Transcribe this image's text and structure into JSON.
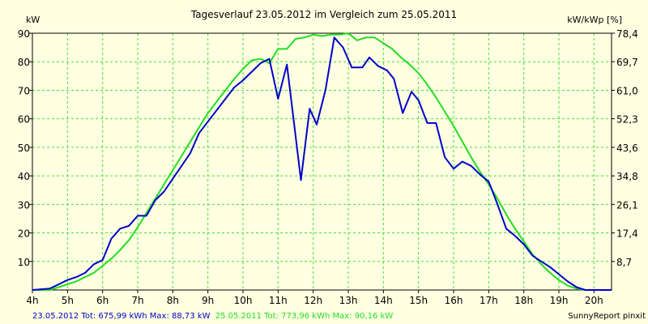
{
  "chart_data": {
    "type": "line",
    "title": "Tagesverlauf 23.05.2012 im Vergleich zum 25.05.2011",
    "ylabel_left": "kW",
    "ylabel_right": "kW/kWp [%]",
    "xlim": [
      4,
      20.5
    ],
    "ylim": [
      0,
      90
    ],
    "grid": true,
    "x_ticks": [
      {
        "value": 4,
        "label": "4h"
      },
      {
        "value": 5,
        "label": "5h"
      },
      {
        "value": 6,
        "label": "6h"
      },
      {
        "value": 7,
        "label": "7h"
      },
      {
        "value": 8,
        "label": "8h"
      },
      {
        "value": 9,
        "label": "9h"
      },
      {
        "value": 10,
        "label": "10h"
      },
      {
        "value": 11,
        "label": "11h"
      },
      {
        "value": 12,
        "label": "12h"
      },
      {
        "value": 13,
        "label": "13h"
      },
      {
        "value": 14,
        "label": "14h"
      },
      {
        "value": 15,
        "label": "15h"
      },
      {
        "value": 16,
        "label": "16h"
      },
      {
        "value": 17,
        "label": "17h"
      },
      {
        "value": 18,
        "label": "18h"
      },
      {
        "value": 19,
        "label": "19h"
      },
      {
        "value": 20,
        "label": "20h"
      }
    ],
    "y_ticks_left": [
      {
        "value": 10,
        "label": "10"
      },
      {
        "value": 20,
        "label": "20"
      },
      {
        "value": 30,
        "label": "30"
      },
      {
        "value": 40,
        "label": "40"
      },
      {
        "value": 50,
        "label": "50"
      },
      {
        "value": 60,
        "label": "60"
      },
      {
        "value": 70,
        "label": "70"
      },
      {
        "value": 80,
        "label": "80"
      },
      {
        "value": 90,
        "label": "90"
      }
    ],
    "y_ticks_right": [
      {
        "value": 10,
        "label": "8,7"
      },
      {
        "value": 20,
        "label": "17,4"
      },
      {
        "value": 30,
        "label": "26,1"
      },
      {
        "value": 40,
        "label": "34,8"
      },
      {
        "value": 50,
        "label": "43,6"
      },
      {
        "value": 60,
        "label": "52,3"
      },
      {
        "value": 70,
        "label": "61,0"
      },
      {
        "value": 80,
        "label": "69,7"
      },
      {
        "value": 90,
        "label": "78,4"
      }
    ],
    "series": [
      {
        "name": "23.05.2012",
        "color": "#0000cc",
        "points": [
          [
            4.0,
            0
          ],
          [
            4.5,
            0.5
          ],
          [
            4.75,
            2
          ],
          [
            5.0,
            3.5
          ],
          [
            5.25,
            4.5
          ],
          [
            5.5,
            6
          ],
          [
            5.75,
            9
          ],
          [
            6.0,
            10.5
          ],
          [
            6.25,
            18
          ],
          [
            6.5,
            21.5
          ],
          [
            6.75,
            22.5
          ],
          [
            7.0,
            26
          ],
          [
            7.25,
            26
          ],
          [
            7.5,
            31.5
          ],
          [
            7.75,
            34.5
          ],
          [
            8.0,
            39
          ],
          [
            8.25,
            43.5
          ],
          [
            8.5,
            48
          ],
          [
            8.75,
            55
          ],
          [
            9.0,
            59
          ],
          [
            9.25,
            63
          ],
          [
            9.5,
            67
          ],
          [
            9.75,
            71
          ],
          [
            10.0,
            73.5
          ],
          [
            10.25,
            76.5
          ],
          [
            10.5,
            79.5
          ],
          [
            10.75,
            81
          ],
          [
            11.0,
            67
          ],
          [
            11.25,
            79
          ],
          [
            11.45,
            59
          ],
          [
            11.65,
            38.5
          ],
          [
            11.9,
            63.5
          ],
          [
            12.1,
            58
          ],
          [
            12.35,
            70
          ],
          [
            12.6,
            88.5
          ],
          [
            12.85,
            85
          ],
          [
            13.1,
            78
          ],
          [
            13.4,
            78
          ],
          [
            13.6,
            81.5
          ],
          [
            13.85,
            78.5
          ],
          [
            14.1,
            77
          ],
          [
            14.3,
            74
          ],
          [
            14.55,
            62
          ],
          [
            14.8,
            69.5
          ],
          [
            15.0,
            66.5
          ],
          [
            15.25,
            58.5
          ],
          [
            15.5,
            58.5
          ],
          [
            15.75,
            46.5
          ],
          [
            16.0,
            42.5
          ],
          [
            16.25,
            45
          ],
          [
            16.5,
            43.5
          ],
          [
            16.75,
            40.5
          ],
          [
            17.0,
            38
          ],
          [
            17.25,
            30
          ],
          [
            17.5,
            21.5
          ],
          [
            17.75,
            19
          ],
          [
            18.0,
            16
          ],
          [
            18.25,
            12
          ],
          [
            18.5,
            10
          ],
          [
            18.75,
            8
          ],
          [
            19.0,
            5.5
          ],
          [
            19.25,
            3
          ],
          [
            19.5,
            1
          ],
          [
            19.75,
            0
          ],
          [
            20.5,
            0
          ]
        ]
      },
      {
        "name": "25.05.2011",
        "color": "#22dd22",
        "points": [
          [
            4.0,
            0
          ],
          [
            4.5,
            0
          ],
          [
            4.75,
            1
          ],
          [
            5.0,
            2
          ],
          [
            5.25,
            3
          ],
          [
            5.5,
            4.5
          ],
          [
            5.75,
            6
          ],
          [
            6.0,
            8.5
          ],
          [
            6.25,
            11
          ],
          [
            6.5,
            14
          ],
          [
            6.75,
            17.5
          ],
          [
            7.0,
            22
          ],
          [
            7.25,
            27
          ],
          [
            7.5,
            32
          ],
          [
            7.75,
            37
          ],
          [
            8.0,
            42
          ],
          [
            8.25,
            47
          ],
          [
            8.5,
            52
          ],
          [
            8.75,
            57
          ],
          [
            9.0,
            62
          ],
          [
            9.25,
            66
          ],
          [
            9.5,
            70
          ],
          [
            9.75,
            74
          ],
          [
            10.0,
            77.5
          ],
          [
            10.25,
            80.5
          ],
          [
            10.5,
            81
          ],
          [
            10.75,
            79.5
          ],
          [
            11.0,
            84.5
          ],
          [
            11.25,
            84.5
          ],
          [
            11.5,
            88
          ],
          [
            11.75,
            88.5
          ],
          [
            12.0,
            89.5
          ],
          [
            12.25,
            89
          ],
          [
            12.5,
            89.5
          ],
          [
            12.75,
            89.5
          ],
          [
            13.0,
            90
          ],
          [
            13.25,
            87.5
          ],
          [
            13.5,
            88.5
          ],
          [
            13.75,
            88.5
          ],
          [
            14.0,
            86.5
          ],
          [
            14.25,
            84.5
          ],
          [
            14.5,
            81.5
          ],
          [
            14.75,
            79
          ],
          [
            15.0,
            76
          ],
          [
            15.25,
            72
          ],
          [
            15.5,
            67.5
          ],
          [
            15.75,
            62.5
          ],
          [
            16.0,
            57.5
          ],
          [
            16.25,
            52
          ],
          [
            16.5,
            46.5
          ],
          [
            16.75,
            41.5
          ],
          [
            17.0,
            37
          ],
          [
            17.25,
            32
          ],
          [
            17.5,
            26.5
          ],
          [
            17.75,
            21.5
          ],
          [
            18.0,
            17
          ],
          [
            18.25,
            12.5
          ],
          [
            18.5,
            9
          ],
          [
            18.75,
            6
          ],
          [
            19.0,
            3.5
          ],
          [
            19.25,
            1.5
          ],
          [
            19.5,
            0.5
          ],
          [
            19.75,
            0
          ],
          [
            20.5,
            0
          ]
        ]
      }
    ],
    "footer": {
      "left_2012": "23.05.2012 Tot: 675,99 kWh Max: 88,73 kW",
      "left_2011": "25.05.2011 Tot: 773,96 kWh Max: 90,16 kW",
      "right": "SunnyReport pinxit"
    }
  },
  "colors": {
    "background": "#ffffe1",
    "grid": "#44dd44",
    "series_2012": "#0000cc",
    "series_2011": "#22dd22"
  }
}
